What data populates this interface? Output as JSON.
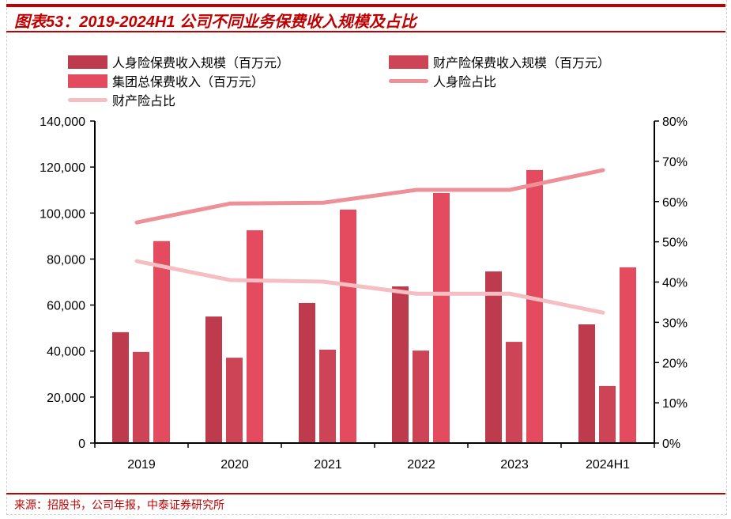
{
  "title": "图表53：2019-2024H1 公司不同业务保费收入规模及占比",
  "source": "来源：招股书，公司年报，中泰证券研究所",
  "chart_data": {
    "type": "bar",
    "categories": [
      "2019",
      "2020",
      "2021",
      "2022",
      "2023",
      "2024H1"
    ],
    "series": [
      {
        "name": "人身险保费收入规模（百万元）",
        "type": "bar",
        "axis": "left",
        "color": "#BE3A4D",
        "values": [
          48200,
          55000,
          60900,
          68100,
          74600,
          51600
        ]
      },
      {
        "name": "财产险保费收入规模（百万元）",
        "type": "bar",
        "axis": "left",
        "color": "#CC4456",
        "values": [
          39600,
          37100,
          40600,
          40200,
          44000,
          24800
        ]
      },
      {
        "name": "集团总保费收入（百万元）",
        "type": "bar",
        "axis": "left",
        "color": "#E54B5E",
        "values": [
          87800,
          92500,
          101500,
          108700,
          118700,
          76400
        ]
      },
      {
        "name": "人身险占比",
        "type": "line",
        "axis": "right",
        "color": "#EE9098",
        "values": [
          54.8,
          59.5,
          59.7,
          62.9,
          62.9,
          67.8
        ]
      },
      {
        "name": "财产险占比",
        "type": "line",
        "axis": "right",
        "color": "#F4BEC3",
        "values": [
          45.2,
          40.5,
          40.1,
          37.1,
          37.1,
          32.4
        ]
      }
    ],
    "left_axis": {
      "ylim": [
        0,
        140000
      ],
      "ticks": [
        "0",
        "20,000",
        "40,000",
        "60,000",
        "80,000",
        "100,000",
        "120,000",
        "140,000"
      ]
    },
    "right_axis": {
      "ylim": [
        0,
        80
      ],
      "unit": "%",
      "ticks": [
        "0%",
        "10%",
        "20%",
        "30%",
        "40%",
        "50%",
        "60%",
        "70%",
        "80%"
      ]
    },
    "grid": false,
    "legend": "top"
  }
}
